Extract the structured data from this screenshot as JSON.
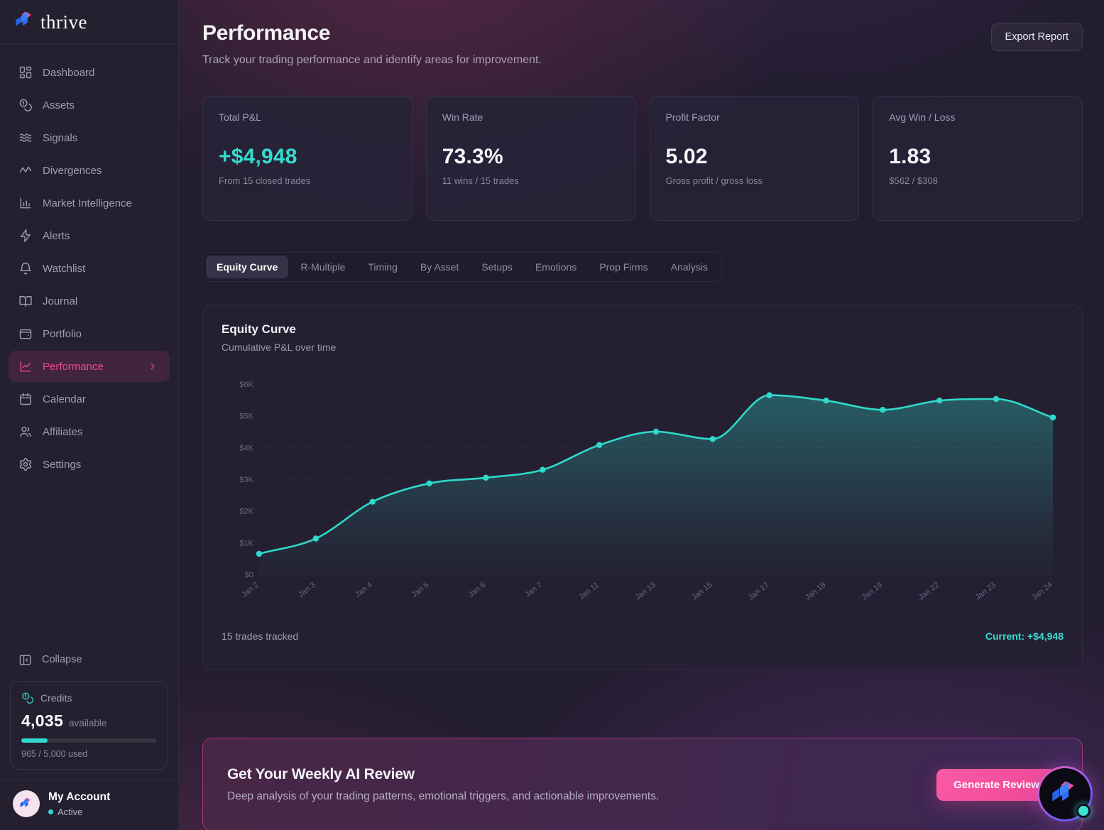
{
  "brand": {
    "name": "thrive"
  },
  "sidebar": {
    "items": [
      {
        "label": "Dashboard",
        "icon": "dashboard-icon",
        "active": false
      },
      {
        "label": "Assets",
        "icon": "assets-icon",
        "active": false
      },
      {
        "label": "Signals",
        "icon": "signals-icon",
        "active": false
      },
      {
        "label": "Divergences",
        "icon": "divergences-icon",
        "active": false
      },
      {
        "label": "Market Intelligence",
        "icon": "market-intelligence-icon",
        "active": false
      },
      {
        "label": "Alerts",
        "icon": "alerts-icon",
        "active": false
      },
      {
        "label": "Watchlist",
        "icon": "watchlist-icon",
        "active": false
      },
      {
        "label": "Journal",
        "icon": "journal-icon",
        "active": false
      },
      {
        "label": "Portfolio",
        "icon": "portfolio-icon",
        "active": false
      },
      {
        "label": "Performance",
        "icon": "performance-icon",
        "active": true
      },
      {
        "label": "Calendar",
        "icon": "calendar-icon",
        "active": false
      },
      {
        "label": "Affiliates",
        "icon": "affiliates-icon",
        "active": false
      },
      {
        "label": "Settings",
        "icon": "settings-icon",
        "active": false
      }
    ],
    "collapse_label": "Collapse",
    "credits": {
      "label": "Credits",
      "icon": "coins-icon",
      "amount": "4,035",
      "available_label": "available",
      "usage": "965 / 5,000 used",
      "used_pct": 19.3
    },
    "account": {
      "name": "My Account",
      "status": "Active"
    }
  },
  "header": {
    "title": "Performance",
    "subtitle": "Track your trading performance and identify areas for improvement.",
    "export_label": "Export Report"
  },
  "stats": {
    "cards": [
      {
        "label": "Total P&L",
        "value": "+$4,948",
        "sub": "From 15 closed trades",
        "accent": "teal"
      },
      {
        "label": "Win Rate",
        "value": "73.3%",
        "sub": "11 wins / 15 trades",
        "accent": "white"
      },
      {
        "label": "Profit Factor",
        "value": "5.02",
        "sub": "Gross profit / gross loss",
        "accent": "white"
      },
      {
        "label": "Avg Win / Loss",
        "value": "1.83",
        "sub": "$562 / $308",
        "accent": "white"
      }
    ]
  },
  "tabs": {
    "items": [
      {
        "label": "Equity Curve",
        "active": true
      },
      {
        "label": "R-Multiple",
        "active": false
      },
      {
        "label": "Timing",
        "active": false
      },
      {
        "label": "By Asset",
        "active": false
      },
      {
        "label": "Setups",
        "active": false
      },
      {
        "label": "Emotions",
        "active": false
      },
      {
        "label": "Prop Firms",
        "active": false
      },
      {
        "label": "Analysis",
        "active": false
      }
    ]
  },
  "chart_card": {
    "title": "Equity Curve",
    "subtitle": "Cumulative P&L over time",
    "footer_left": "15 trades tracked",
    "footer_right": "Current: +$4,948"
  },
  "chart_data": {
    "type": "area",
    "title": "Equity Curve",
    "x": [
      "Jan 2",
      "Jan 3",
      "Jan 4",
      "Jan 5",
      "Jan 6",
      "Jan 7",
      "Jan 11",
      "Jan 13",
      "Jan 15",
      "Jan 17",
      "Jan 18",
      "Jan 19",
      "Jan 22",
      "Jan 23",
      "Jan 24"
    ],
    "series": [
      {
        "name": "Cumulative P&L",
        "values": [
          650,
          1130,
          2290,
          2870,
          3050,
          3300,
          4080,
          4500,
          4270,
          5650,
          5480,
          5190,
          5480,
          5530,
          4948
        ]
      }
    ],
    "ylim": [
      0,
      6000
    ],
    "yticks": [
      "$0",
      "$1K",
      "$2K",
      "$3K",
      "$4K",
      "$5K",
      "$6K"
    ],
    "grid": "horizontal-dashed",
    "legend": "none",
    "line_color": "#2fd9cb"
  },
  "banner": {
    "title": "Get Your Weekly AI Review",
    "description": "Deep analysis of your trading patterns, emotional triggers, and actionable improvements.",
    "button_label": "Generate Review"
  },
  "colors": {
    "teal": "#2fd9cb",
    "pink": "#ec4899",
    "accent_text": "#f1478f"
  }
}
